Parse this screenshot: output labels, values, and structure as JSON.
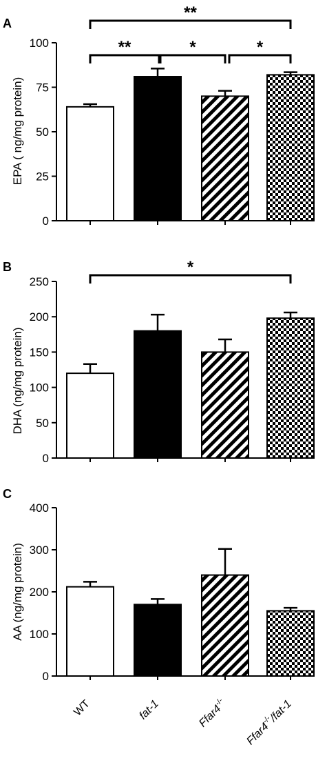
{
  "chart_data": [
    {
      "type": "bar",
      "panel": "A",
      "ylabel": "EPA ( ng/mg protein)",
      "ylim": [
        0,
        100
      ],
      "yticks": [
        0,
        25,
        50,
        75,
        100
      ],
      "categories": [
        "WT",
        "fat-1",
        "Ffar4⁻/⁻",
        "Ffar4⁻/⁻/fat-1"
      ],
      "values": [
        64,
        81,
        70,
        82
      ],
      "errors": [
        1.5,
        4.5,
        3,
        1.5
      ],
      "significance": [
        {
          "from": 0,
          "to": 3,
          "label": "**"
        },
        {
          "from": 0,
          "to": 1,
          "label": "**"
        },
        {
          "from": 1,
          "to": 2,
          "label": "*"
        },
        {
          "from": 2,
          "to": 3,
          "label": "*"
        }
      ]
    },
    {
      "type": "bar",
      "panel": "B",
      "ylabel": "DHA (ng/mg protein)",
      "ylim": [
        0,
        250
      ],
      "yticks": [
        0,
        50,
        100,
        150,
        200,
        250
      ],
      "categories": [
        "WT",
        "fat-1",
        "Ffar4⁻/⁻",
        "Ffar4⁻/⁻/fat-1"
      ],
      "values": [
        120,
        180,
        150,
        198
      ],
      "errors": [
        13,
        23,
        18,
        8
      ],
      "significance": [
        {
          "from": 0,
          "to": 3,
          "label": "*"
        }
      ]
    },
    {
      "type": "bar",
      "panel": "C",
      "ylabel": "AA (ng/mg protein)",
      "ylim": [
        0,
        400
      ],
      "yticks": [
        0,
        100,
        200,
        300,
        400
      ],
      "categories": [
        "WT",
        "fat-1",
        "Ffar4⁻/⁻",
        "Ffar4⁻/⁻/fat-1"
      ],
      "values": [
        212,
        170,
        240,
        155
      ],
      "errors": [
        12,
        13,
        62,
        7
      ],
      "significance": []
    }
  ],
  "x_categories": {
    "wt": "WT",
    "fat1": "fat-1",
    "ffar4": "Ffar4",
    "ffar4_sup": "-/-",
    "combo_main": "Ffar4",
    "combo_sup": "-/-",
    "combo_tail": "/fat-1"
  },
  "fills": [
    "white",
    "black",
    "hatch",
    "checker"
  ],
  "colors": {
    "bar_stroke": "#000000",
    "bar_black": "#000000",
    "background": "#ffffff"
  }
}
